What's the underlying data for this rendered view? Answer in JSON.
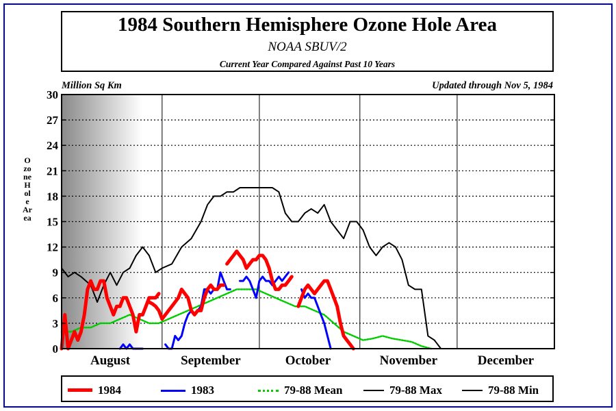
{
  "header": {
    "title": "1984 Southern Hemisphere Ozone Hole Area",
    "subtitle": "NOAA SBUV/2",
    "note": "Current Year Compared Against Past 10 Years"
  },
  "units_label": "Million Sq Km",
  "updated_label": "Updated through Nov 5, 1984",
  "colors": {
    "frame": "#0000cc",
    "series_1984": "#ff0000",
    "series_1983": "#0000ff",
    "series_mean": "#00cc00",
    "series_max": "#000000",
    "series_min": "#000000"
  },
  "chart_data": {
    "type": "line",
    "ylabel": "Ozone Hole Area",
    "ylim": [
      0,
      30
    ],
    "xlim": [
      213,
      365
    ],
    "y_ticks": [
      "0",
      "3",
      "6",
      "9",
      "12",
      "15",
      "18",
      "21",
      "24",
      "27",
      "30"
    ],
    "x_month_labels": [
      {
        "label": "August",
        "day": 228
      },
      {
        "label": "September",
        "day": 259
      },
      {
        "label": "October",
        "day": 289
      },
      {
        "label": "November",
        "day": 320
      },
      {
        "label": "December",
        "day": 350
      }
    ],
    "month_boundaries": [
      244,
      274,
      305,
      335
    ],
    "grid": "dotted-horizontal",
    "legend_position": "bottom",
    "series": [
      {
        "name": "1984",
        "style": "thick-solid",
        "points": [
          [
            213,
            0
          ],
          [
            214,
            4
          ],
          [
            215,
            0
          ],
          [
            216,
            1
          ],
          [
            217,
            2
          ],
          [
            218,
            1
          ],
          [
            219,
            2
          ],
          [
            220,
            4
          ],
          [
            221,
            7
          ],
          [
            222,
            8
          ],
          [
            223,
            7
          ],
          [
            224,
            7
          ],
          [
            225,
            8
          ],
          [
            226,
            8
          ],
          [
            227,
            6
          ],
          [
            228,
            5
          ],
          [
            229,
            4
          ],
          [
            230,
            5
          ],
          [
            231,
            5
          ],
          [
            232,
            6
          ],
          [
            233,
            6
          ],
          [
            234,
            5
          ],
          [
            235,
            4
          ],
          [
            236,
            2
          ],
          [
            237,
            4
          ],
          [
            238,
            4
          ],
          [
            239,
            5
          ],
          [
            240,
            6
          ],
          [
            241,
            6
          ],
          [
            242,
            6
          ],
          [
            243,
            6.5
          ],
          null,
          [
            240,
            5.5
          ],
          [
            241,
            5.3
          ],
          [
            242,
            5
          ],
          [
            243,
            4.5
          ],
          [
            244,
            3.5
          ],
          [
            245,
            4
          ],
          [
            246,
            4.5
          ],
          [
            247,
            5
          ],
          [
            248,
            5.5
          ],
          [
            249,
            6
          ],
          [
            250,
            7
          ],
          [
            251,
            6.5
          ],
          [
            252,
            6
          ],
          [
            253,
            4.5
          ],
          [
            254,
            4
          ],
          [
            255,
            4.5
          ],
          [
            256,
            4.5
          ],
          [
            257,
            6
          ],
          [
            258,
            7
          ],
          [
            259,
            7.5
          ],
          [
            260,
            7
          ],
          [
            261,
            7
          ],
          [
            262,
            7.5
          ],
          [
            263,
            7.5
          ],
          null,
          [
            264,
            10
          ],
          [
            265,
            10.5
          ],
          [
            266,
            11
          ],
          [
            267,
            11.5
          ],
          [
            268,
            11
          ],
          [
            269,
            10.5
          ],
          [
            270,
            9.5
          ],
          [
            271,
            10
          ],
          [
            272,
            10.5
          ],
          [
            273,
            10.5
          ],
          [
            274,
            11
          ],
          [
            275,
            11
          ],
          [
            276,
            10.5
          ],
          [
            277,
            9.5
          ],
          [
            278,
            8
          ],
          [
            279,
            7
          ],
          [
            280,
            7
          ],
          [
            281,
            7.5
          ],
          [
            282,
            7.5
          ],
          [
            283,
            8
          ],
          [
            284,
            8.5
          ],
          null,
          [
            286,
            5
          ],
          [
            287,
            6
          ],
          [
            288,
            7
          ],
          [
            289,
            7.5
          ],
          [
            290,
            7
          ],
          [
            291,
            6.5
          ],
          [
            292,
            7
          ],
          [
            293,
            7.5
          ],
          [
            294,
            8
          ],
          [
            295,
            8
          ],
          [
            296,
            7
          ],
          [
            297,
            6
          ],
          [
            298,
            5
          ],
          [
            299,
            3
          ],
          [
            300,
            1.5
          ],
          [
            301,
            1
          ],
          [
            302,
            0.5
          ],
          [
            303,
            0
          ]
        ]
      },
      {
        "name": "1983",
        "style": "solid",
        "points": [
          [
            231,
            0
          ],
          [
            232,
            0.5
          ],
          [
            233,
            0
          ],
          [
            234,
            0.5
          ],
          [
            235,
            0
          ],
          [
            236,
            0
          ],
          [
            237,
            0
          ],
          [
            238,
            0
          ],
          null,
          [
            245,
            0.5
          ],
          [
            246,
            0
          ],
          [
            247,
            0
          ],
          [
            248,
            1.5
          ],
          [
            249,
            1
          ],
          [
            250,
            1.5
          ],
          [
            251,
            3
          ],
          [
            252,
            4
          ],
          [
            253,
            4.5
          ],
          [
            254,
            4
          ],
          [
            255,
            4.5
          ],
          [
            256,
            5
          ],
          [
            257,
            7
          ],
          [
            258,
            7
          ],
          [
            259,
            6.5
          ],
          [
            260,
            7
          ],
          [
            261,
            7
          ],
          [
            262,
            9
          ],
          [
            263,
            8
          ],
          [
            264,
            7
          ],
          [
            265,
            7
          ],
          null,
          [
            268,
            8
          ],
          [
            269,
            8
          ],
          [
            270,
            8.5
          ],
          [
            271,
            8
          ],
          [
            272,
            7
          ],
          [
            273,
            6
          ],
          [
            274,
            8
          ],
          [
            275,
            8.5
          ],
          [
            276,
            8
          ],
          [
            277,
            8
          ],
          [
            278,
            7.5
          ],
          [
            279,
            8
          ],
          [
            280,
            8.5
          ],
          [
            281,
            8
          ],
          [
            282,
            8.5
          ],
          [
            283,
            9
          ],
          null,
          [
            287,
            7
          ],
          [
            288,
            6
          ],
          [
            289,
            6.5
          ],
          [
            290,
            6
          ],
          [
            291,
            6
          ],
          [
            292,
            5
          ],
          [
            293,
            4
          ],
          [
            294,
            3
          ],
          [
            295,
            1.5
          ],
          [
            296,
            0
          ]
        ]
      },
      {
        "name": "79-88 Mean",
        "style": "dotted",
        "points": [
          [
            213,
            2
          ],
          [
            216,
            2
          ],
          [
            219,
            2.5
          ],
          [
            222,
            2.5
          ],
          [
            225,
            3
          ],
          [
            228,
            3
          ],
          [
            231,
            3.5
          ],
          [
            234,
            4
          ],
          [
            237,
            3.5
          ],
          [
            240,
            3
          ],
          [
            243,
            3
          ],
          [
            246,
            3.5
          ],
          [
            249,
            4
          ],
          [
            252,
            4.5
          ],
          [
            255,
            5
          ],
          [
            258,
            5.5
          ],
          [
            261,
            6
          ],
          [
            264,
            6.5
          ],
          [
            267,
            7
          ],
          [
            270,
            7
          ],
          [
            273,
            7
          ],
          [
            276,
            6.5
          ],
          [
            279,
            6
          ],
          [
            282,
            5.5
          ],
          [
            285,
            5
          ],
          [
            288,
            5
          ],
          [
            291,
            4.5
          ],
          [
            294,
            4
          ],
          [
            297,
            3
          ],
          [
            300,
            2
          ],
          [
            303,
            1.5
          ],
          [
            306,
            1
          ],
          [
            309,
            1.2
          ],
          [
            312,
            1.5
          ],
          [
            315,
            1.2
          ],
          [
            318,
            1
          ],
          [
            321,
            0.8
          ],
          [
            324,
            0.3
          ],
          [
            327,
            0
          ]
        ]
      },
      {
        "name": "79-88 Max",
        "style": "solid",
        "points": [
          [
            213,
            9.5
          ],
          [
            215,
            8.5
          ],
          [
            217,
            9
          ],
          [
            219,
            8.5
          ],
          [
            222,
            7.5
          ],
          [
            224,
            5.5
          ],
          [
            226,
            7.5
          ],
          [
            228,
            9
          ],
          [
            230,
            7.5
          ],
          [
            232,
            9
          ],
          [
            234,
            9.5
          ],
          [
            236,
            11
          ],
          [
            238,
            12
          ],
          [
            240,
            11
          ],
          [
            242,
            9
          ],
          [
            244,
            9.5
          ],
          [
            247,
            10
          ],
          [
            250,
            12
          ],
          [
            253,
            13
          ],
          [
            256,
            15
          ],
          [
            258,
            17
          ],
          [
            260,
            18
          ],
          [
            262,
            18
          ],
          [
            264,
            18.5
          ],
          [
            266,
            18.5
          ],
          [
            268,
            19
          ],
          [
            270,
            19
          ],
          [
            272,
            19
          ],
          [
            274,
            19
          ],
          [
            276,
            19
          ],
          [
            278,
            19
          ],
          [
            280,
            18.5
          ],
          [
            282,
            16
          ],
          [
            284,
            15
          ],
          [
            286,
            15
          ],
          [
            288,
            16
          ],
          [
            290,
            16.5
          ],
          [
            292,
            16
          ],
          [
            294,
            17
          ],
          [
            296,
            15
          ],
          [
            298,
            14
          ],
          [
            300,
            13
          ],
          [
            302,
            15
          ],
          [
            304,
            15
          ],
          [
            306,
            14
          ],
          [
            308,
            12
          ],
          [
            310,
            11
          ],
          [
            312,
            12
          ],
          [
            314,
            12.5
          ],
          [
            316,
            12
          ],
          [
            318,
            10.5
          ],
          [
            320,
            7.5
          ],
          [
            322,
            7
          ],
          [
            324,
            7
          ],
          [
            326,
            1.5
          ],
          [
            328,
            1
          ],
          [
            330,
            0
          ]
        ]
      },
      {
        "name": "79-88 Min",
        "style": "solid",
        "points": [
          [
            213,
            0
          ],
          [
            330,
            0
          ],
          [
            365,
            0
          ]
        ]
      }
    ]
  }
}
